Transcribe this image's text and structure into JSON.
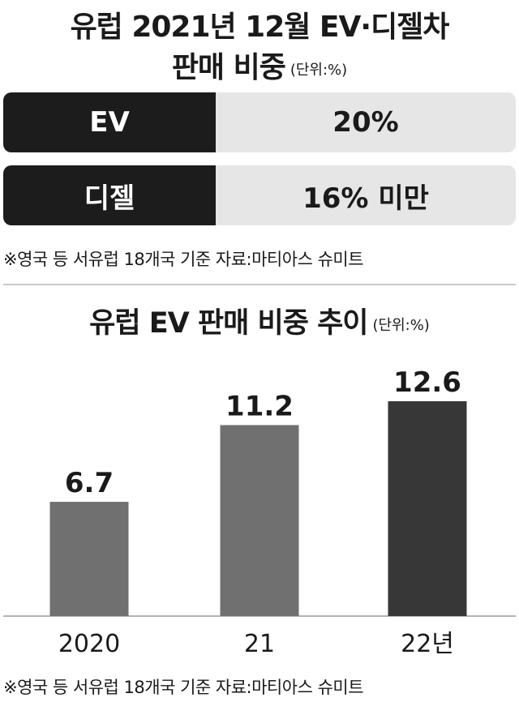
{
  "header": {
    "title_line1": "유럽 2021년 12월 EV·디젤차",
    "title_line2": "판매 비중",
    "unit": "(단위:%)"
  },
  "share_table": {
    "rows": [
      {
        "label": "EV",
        "value": "20%"
      },
      {
        "label": "디젤",
        "value": "16% 미만"
      }
    ],
    "label_bg": "#1c1c1c",
    "value_bg": "#e6e6e6"
  },
  "note_top": "※영국 등 서유럽 18개국 기준  자료:마티아스 슈미트",
  "chart_title": "유럽 EV 판매 비중 추이",
  "chart_unit": "(단위:%)",
  "chart_data": {
    "type": "bar",
    "categories": [
      "2020",
      "21",
      "22년"
    ],
    "values": [
      6.7,
      11.2,
      12.6
    ],
    "value_labels": [
      "6.7",
      "11.2",
      "12.6"
    ],
    "ylim": [
      0,
      14.5
    ],
    "colors": [
      "#707070",
      "#707070",
      "#373737"
    ],
    "grid": false,
    "legend": "none"
  },
  "note_bottom": "※영국 등 서유럽 18개국 기준  자료:마티아스 슈미트"
}
